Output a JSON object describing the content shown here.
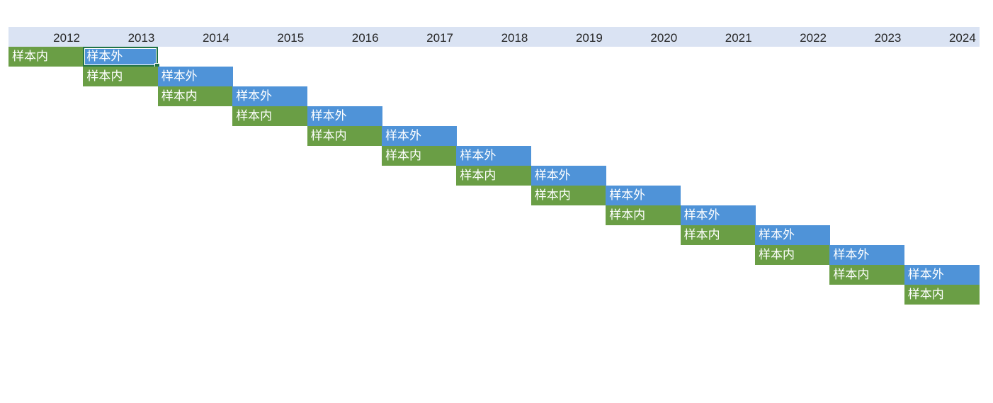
{
  "years": [
    "2012",
    "2013",
    "2014",
    "2015",
    "2016",
    "2017",
    "2018",
    "2019",
    "2020",
    "2021",
    "2022",
    "2023",
    "2024"
  ],
  "labels": {
    "in_sample": "样本内",
    "out_sample": "样本外"
  },
  "rows": [
    {
      "in_col": 0,
      "out_col": 1
    },
    {
      "in_col": 1,
      "out_col": 2
    },
    {
      "in_col": 2,
      "out_col": 3
    },
    {
      "in_col": 3,
      "out_col": 4
    },
    {
      "in_col": 4,
      "out_col": 5
    },
    {
      "in_col": 5,
      "out_col": 6
    },
    {
      "in_col": 6,
      "out_col": 7
    },
    {
      "in_col": 7,
      "out_col": 8
    },
    {
      "in_col": 8,
      "out_col": 9
    },
    {
      "in_col": 9,
      "out_col": 10
    },
    {
      "in_col": 10,
      "out_col": 11
    },
    {
      "in_col": 11,
      "out_col": 12
    },
    {
      "in_col": 12,
      "out_col": null
    }
  ],
  "colors": {
    "header_band": "#dae3f3",
    "in_sample": "#6a9e45",
    "out_sample": "#4f93d8",
    "selection": "#217346"
  }
}
